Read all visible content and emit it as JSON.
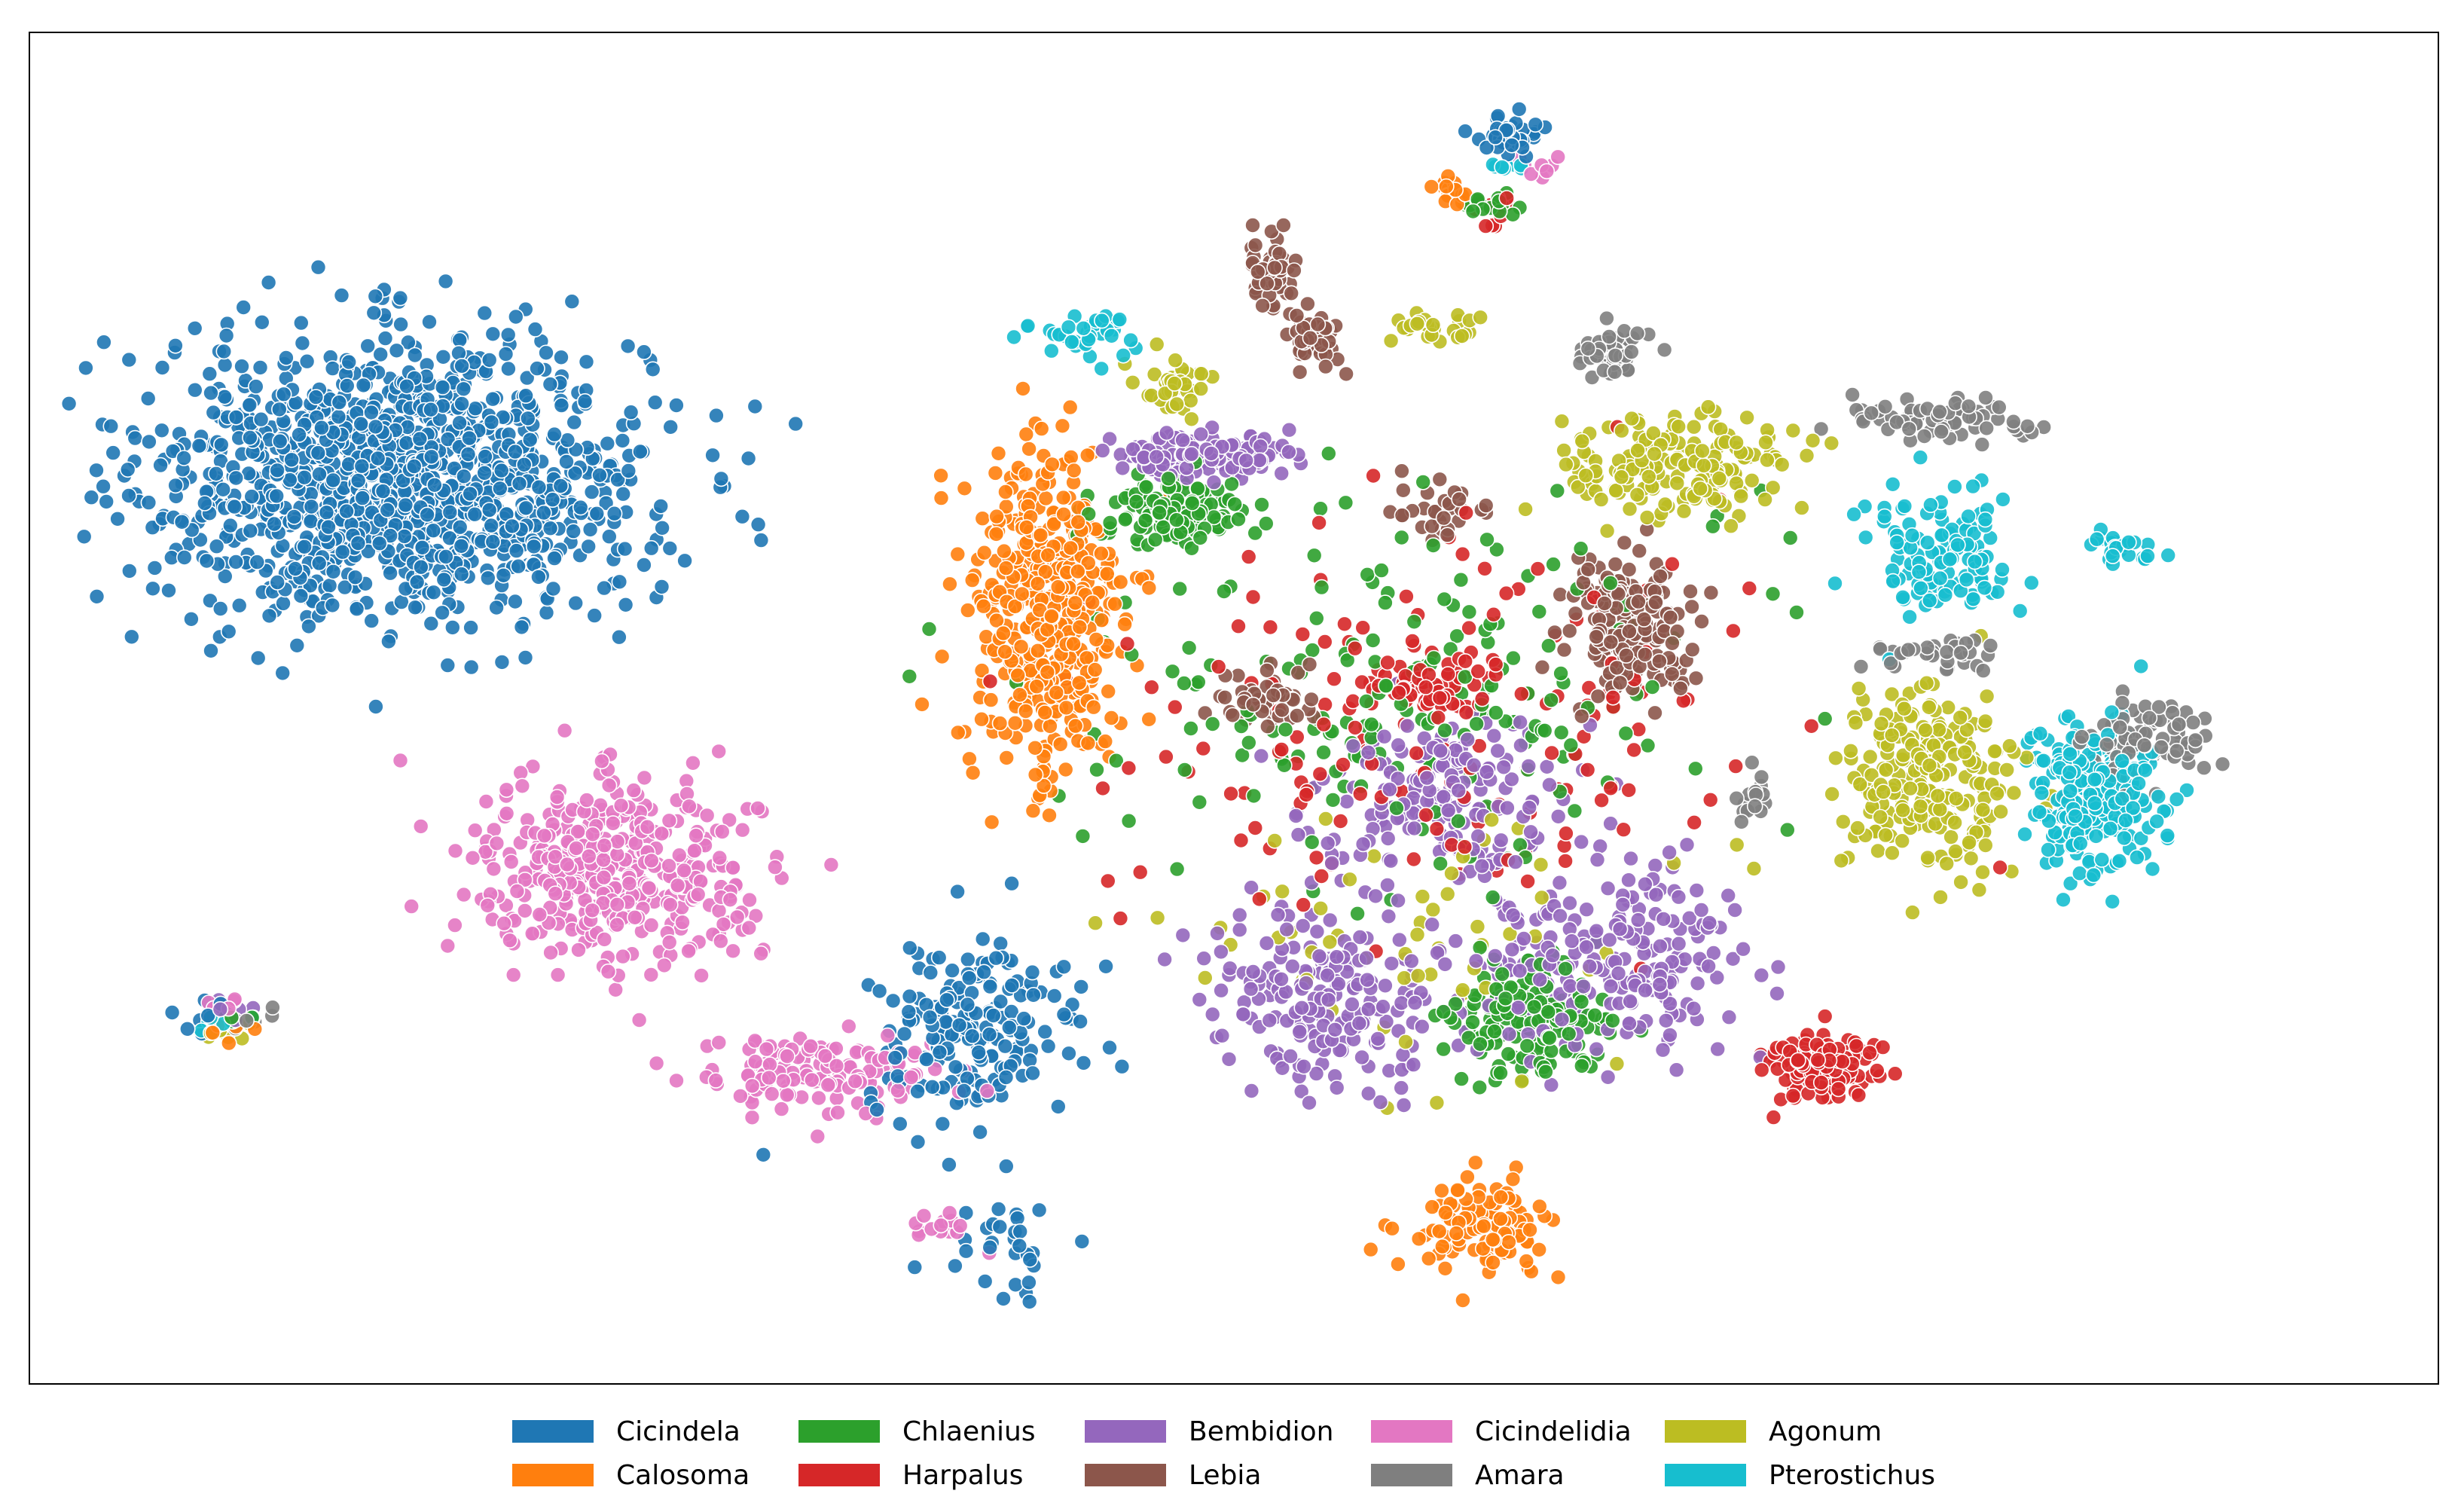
{
  "chart_data": {
    "type": "scatter",
    "title": "",
    "xlabel": "",
    "ylabel": "",
    "axes_visible": false,
    "grid": false,
    "xlim": [
      0,
      100
    ],
    "ylim": [
      0,
      56
    ],
    "marker": {
      "edge_color": "#ffffff",
      "alpha": 0.9
    },
    "legend": {
      "placement": "bottom-center",
      "columns": 6
    },
    "series": [
      {
        "name": "Cicindela",
        "color": "#1f77b4",
        "clusters": [
          {
            "cx": 14.5,
            "cy": 38.0,
            "sx": 9.5,
            "sy": 5.5,
            "n": 1300
          },
          {
            "cx": 39.0,
            "cy": 14.0,
            "sx": 4.2,
            "sy": 3.5,
            "n": 190
          },
          {
            "cx": 40.5,
            "cy": 4.5,
            "sx": 1.8,
            "sy": 1.6,
            "n": 30
          },
          {
            "cx": 61.5,
            "cy": 52.8,
            "sx": 1.4,
            "sy": 0.8,
            "n": 40
          },
          {
            "cx": 6.5,
            "cy": 14.5,
            "sx": 1.2,
            "sy": 0.8,
            "n": 12
          }
        ]
      },
      {
        "name": "Calosoma",
        "color": "#ff7f0e",
        "clusters": [
          {
            "cx": 42.0,
            "cy": 32.0,
            "sx": 3.0,
            "sy": 7.0,
            "n": 450
          },
          {
            "cx": 60.5,
            "cy": 5.5,
            "sx": 2.8,
            "sy": 1.8,
            "n": 110
          },
          {
            "cx": 59.5,
            "cy": 50.5,
            "sx": 1.0,
            "sy": 0.6,
            "n": 15
          },
          {
            "cx": 7.0,
            "cy": 14.0,
            "sx": 1.0,
            "sy": 0.6,
            "n": 6
          }
        ]
      },
      {
        "name": "Chlaenius",
        "color": "#2ca02c",
        "clusters": [
          {
            "cx": 47.5,
            "cy": 36.5,
            "sx": 3.0,
            "sy": 1.4,
            "n": 120
          },
          {
            "cx": 62.5,
            "cy": 14.5,
            "sx": 2.8,
            "sy": 2.2,
            "n": 170
          },
          {
            "cx": 58.0,
            "cy": 29.0,
            "sx": 12.0,
            "sy": 7.5,
            "n": 200
          },
          {
            "cx": 60.5,
            "cy": 50.0,
            "sx": 1.2,
            "sy": 0.7,
            "n": 15
          },
          {
            "cx": 7.5,
            "cy": 14.5,
            "sx": 1.0,
            "sy": 0.6,
            "n": 6
          }
        ]
      },
      {
        "name": "Harpalus",
        "color": "#d62728",
        "clusters": [
          {
            "cx": 75.0,
            "cy": 12.5,
            "sx": 2.2,
            "sy": 1.4,
            "n": 120
          },
          {
            "cx": 58.5,
            "cy": 29.0,
            "sx": 2.0,
            "sy": 1.0,
            "n": 60
          },
          {
            "cx": 58.0,
            "cy": 27.0,
            "sx": 12.0,
            "sy": 8.0,
            "n": 170
          },
          {
            "cx": 61.5,
            "cy": 49.5,
            "sx": 0.8,
            "sy": 0.8,
            "n": 8
          }
        ]
      },
      {
        "name": "Bembidion",
        "color": "#9467bd",
        "clusters": [
          {
            "cx": 48.5,
            "cy": 39.0,
            "sx": 3.5,
            "sy": 0.9,
            "n": 120
          },
          {
            "cx": 66.0,
            "cy": 17.0,
            "sx": 5.5,
            "sy": 3.5,
            "n": 240
          },
          {
            "cx": 54.0,
            "cy": 15.5,
            "sx": 4.5,
            "sy": 3.5,
            "n": 200
          },
          {
            "cx": 59.0,
            "cy": 24.5,
            "sx": 5.0,
            "sy": 3.0,
            "n": 180
          },
          {
            "cx": 7.0,
            "cy": 15.0,
            "sx": 1.0,
            "sy": 0.6,
            "n": 6
          }
        ]
      },
      {
        "name": "Lebia",
        "color": "#8c564b",
        "clusters": [
          {
            "cx": 67.0,
            "cy": 31.5,
            "sx": 2.6,
            "sy": 2.6,
            "n": 180
          },
          {
            "cx": 51.5,
            "cy": 47.0,
            "sx": 1.0,
            "sy": 1.3,
            "n": 55
          },
          {
            "cx": 53.5,
            "cy": 44.0,
            "sx": 1.0,
            "sy": 1.3,
            "n": 45
          },
          {
            "cx": 51.5,
            "cy": 28.5,
            "sx": 2.5,
            "sy": 1.2,
            "n": 45
          },
          {
            "cx": 58.5,
            "cy": 36.5,
            "sx": 1.6,
            "sy": 1.4,
            "n": 30
          }
        ]
      },
      {
        "name": "Cicindelidia",
        "color": "#e377c2",
        "clusters": [
          {
            "cx": 23.5,
            "cy": 21.0,
            "sx": 5.5,
            "sy": 3.5,
            "n": 420
          },
          {
            "cx": 32.5,
            "cy": 12.0,
            "sx": 4.5,
            "sy": 1.6,
            "n": 130
          },
          {
            "cx": 37.5,
            "cy": 5.5,
            "sx": 1.2,
            "sy": 0.8,
            "n": 15
          },
          {
            "cx": 63.0,
            "cy": 51.5,
            "sx": 0.6,
            "sy": 0.6,
            "n": 8
          },
          {
            "cx": 7.0,
            "cy": 15.0,
            "sx": 1.0,
            "sy": 0.6,
            "n": 6
          }
        ]
      },
      {
        "name": "Amara",
        "color": "#7f7f7f",
        "clusters": [
          {
            "cx": 66.0,
            "cy": 43.5,
            "sx": 1.5,
            "sy": 0.9,
            "n": 50
          },
          {
            "cx": 80.5,
            "cy": 40.5,
            "sx": 4.0,
            "sy": 0.8,
            "n": 70
          },
          {
            "cx": 89.0,
            "cy": 26.5,
            "sx": 2.5,
            "sy": 1.8,
            "n": 80
          },
          {
            "cx": 80.0,
            "cy": 30.5,
            "sx": 2.5,
            "sy": 0.8,
            "n": 35
          },
          {
            "cx": 72.0,
            "cy": 24.0,
            "sx": 0.8,
            "sy": 1.0,
            "n": 15
          },
          {
            "cx": 8.0,
            "cy": 14.5,
            "sx": 1.0,
            "sy": 0.6,
            "n": 6
          }
        ]
      },
      {
        "name": "Agonum",
        "color": "#bcbd22",
        "clusters": [
          {
            "cx": 69.0,
            "cy": 38.5,
            "sx": 4.5,
            "sy": 2.0,
            "n": 170
          },
          {
            "cx": 79.5,
            "cy": 25.0,
            "sx": 3.3,
            "sy": 3.6,
            "n": 230
          },
          {
            "cx": 47.5,
            "cy": 42.0,
            "sx": 1.6,
            "sy": 1.2,
            "n": 40
          },
          {
            "cx": 58.5,
            "cy": 44.5,
            "sx": 1.5,
            "sy": 0.8,
            "n": 25
          },
          {
            "cx": 58.0,
            "cy": 18.0,
            "sx": 10.0,
            "sy": 6.0,
            "n": 60
          },
          {
            "cx": 7.0,
            "cy": 14.0,
            "sx": 1.2,
            "sy": 0.6,
            "n": 8
          }
        ]
      },
      {
        "name": "Pterostichus",
        "color": "#17becf",
        "clusters": [
          {
            "cx": 86.5,
            "cy": 24.0,
            "sx": 2.6,
            "sy": 3.0,
            "n": 240
          },
          {
            "cx": 80.0,
            "cy": 34.5,
            "sx": 3.0,
            "sy": 2.5,
            "n": 120
          },
          {
            "cx": 43.5,
            "cy": 44.0,
            "sx": 2.0,
            "sy": 0.9,
            "n": 35
          },
          {
            "cx": 87.5,
            "cy": 35.0,
            "sx": 1.6,
            "sy": 0.7,
            "n": 25
          },
          {
            "cx": 62.0,
            "cy": 51.5,
            "sx": 0.6,
            "sy": 0.6,
            "n": 8
          },
          {
            "cx": 7.0,
            "cy": 14.5,
            "sx": 1.0,
            "sy": 0.6,
            "n": 10
          }
        ]
      }
    ]
  }
}
